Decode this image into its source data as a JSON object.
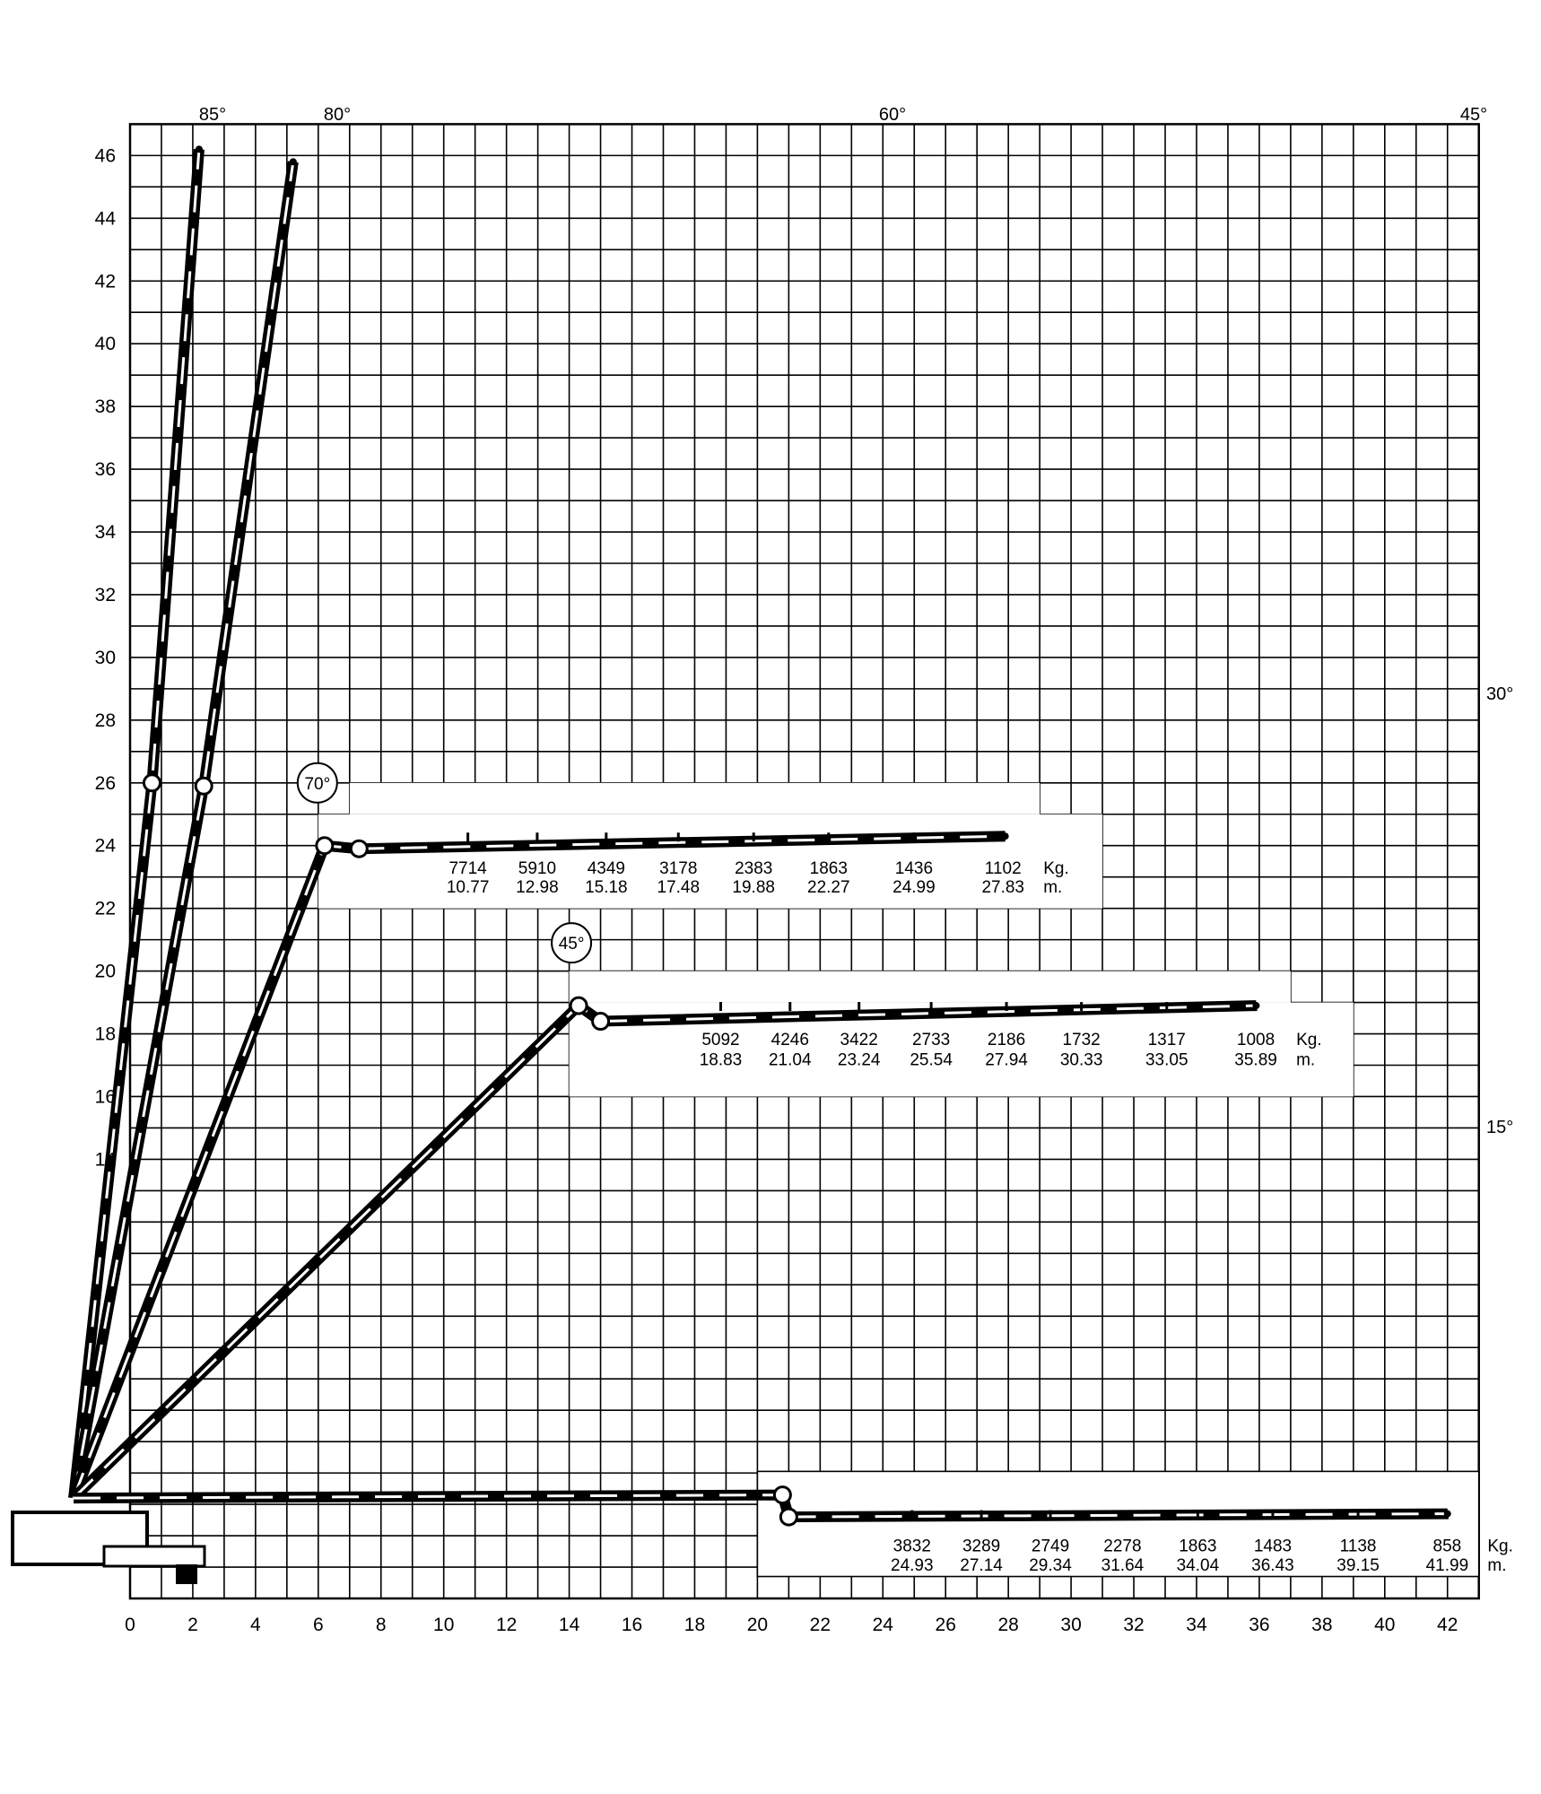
{
  "chart_data": {
    "type": "load-chart",
    "x_ticks": [
      0,
      2,
      4,
      6,
      8,
      10,
      12,
      14,
      16,
      18,
      20,
      22,
      24,
      26,
      28,
      30,
      32,
      34,
      36,
      38,
      40,
      42
    ],
    "y_ticks": [
      14,
      16,
      18,
      20,
      22,
      24,
      26,
      28,
      30,
      32,
      34,
      36,
      38,
      40,
      42,
      44,
      46
    ],
    "xlim": [
      0,
      43
    ],
    "ylim": [
      0,
      47
    ],
    "grid": true,
    "angle_labels": [
      "85°",
      "80°",
      "60°",
      "45°",
      "30°",
      "15°"
    ],
    "units": {
      "load": "Kg.",
      "radius": "m."
    },
    "configurations": [
      {
        "angle": "85°",
        "boom": [
          [
            -1.8,
            3.2
          ],
          [
            0.7,
            26
          ],
          [
            2.2,
            46.2
          ]
        ]
      },
      {
        "angle": "80°",
        "boom": [
          [
            -1.8,
            3.2
          ],
          [
            2.35,
            25.9
          ],
          [
            5.2,
            45.8
          ]
        ]
      },
      {
        "angle": "70°",
        "circled": true,
        "boom": [
          [
            -1.8,
            3.2
          ],
          [
            6.2,
            24
          ],
          [
            7.3,
            23.9
          ],
          [
            27.9,
            24.3
          ]
        ],
        "loads": [
          7714,
          5910,
          4349,
          3178,
          2383,
          1863,
          1436,
          1102
        ],
        "radii": [
          10.77,
          12.98,
          15.18,
          17.48,
          19.88,
          22.27,
          24.99,
          27.83
        ]
      },
      {
        "angle": "45°",
        "circled": true,
        "boom": [
          [
            -1.8,
            3.2
          ],
          [
            14.3,
            18.9
          ],
          [
            15,
            18.4
          ],
          [
            35.9,
            18.9
          ]
        ],
        "loads": [
          5092,
          4246,
          3422,
          2733,
          2186,
          1732,
          1317,
          1008
        ],
        "radii": [
          18.83,
          21.04,
          23.24,
          25.54,
          27.94,
          30.33,
          33.05,
          35.89
        ]
      },
      {
        "angle": "0°",
        "boom": [
          [
            -1.8,
            3.2
          ],
          [
            20.8,
            3.3
          ],
          [
            21,
            2.6
          ],
          [
            42,
            2.7
          ]
        ],
        "loads": [
          3832,
          3289,
          2749,
          2278,
          1863,
          1483,
          1138,
          858
        ],
        "radii": [
          24.93,
          27.14,
          29.34,
          31.64,
          34.04,
          36.43,
          39.15,
          41.99
        ]
      }
    ]
  }
}
